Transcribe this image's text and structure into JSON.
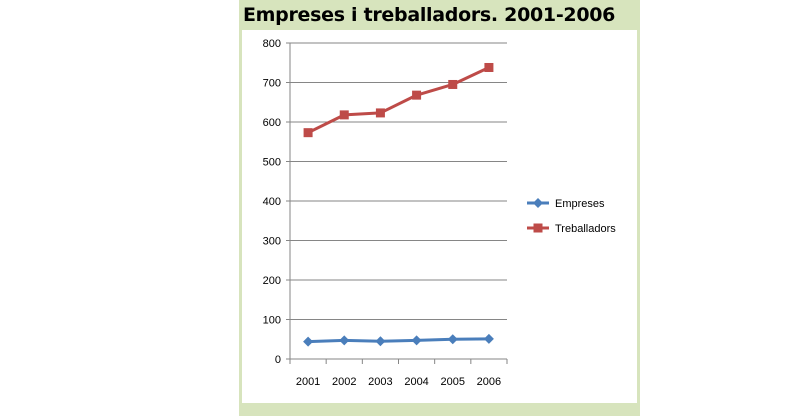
{
  "chart_data": {
    "type": "line",
    "title": "Empreses i treballadors. 2001-2006",
    "categories": [
      "2001",
      "2002",
      "2003",
      "2004",
      "2005",
      "2006"
    ],
    "series": [
      {
        "name": "Empreses",
        "values": [
          44,
          47,
          45,
          47,
          50,
          51
        ],
        "color": "#4a7ebb",
        "marker": "diamond"
      },
      {
        "name": "Treballadors",
        "values": [
          573,
          618,
          623,
          668,
          695,
          738
        ],
        "color": "#be4b48",
        "marker": "square"
      }
    ],
    "ylim": [
      0,
      800
    ],
    "yticks": [
      "0",
      "100",
      "200",
      "300",
      "400",
      "500",
      "600",
      "700",
      "800"
    ],
    "grid": true,
    "legend": "right"
  },
  "colors": {
    "panel_background": "#d7e4bd",
    "gridline": "#868686"
  }
}
